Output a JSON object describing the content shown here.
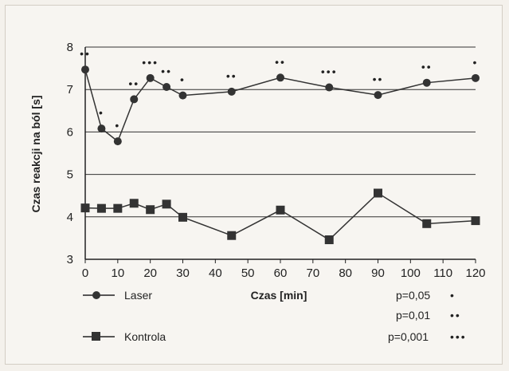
{
  "chart_data": {
    "type": "line",
    "xlabel": "Czas [min]",
    "ylabel": "Czas reakcji na ból [s]",
    "xlim": [
      0,
      120
    ],
    "ylim": [
      3,
      8
    ],
    "x_ticks": [
      0,
      10,
      20,
      30,
      40,
      50,
      60,
      70,
      80,
      90,
      100,
      110,
      120
    ],
    "y_ticks": [
      3,
      4,
      5,
      6,
      7,
      8
    ],
    "grid": "horizontal",
    "series": [
      {
        "name": "Laser",
        "marker": "circle",
        "x": [
          0,
          5,
          10,
          15,
          20,
          25,
          30,
          45,
          60,
          75,
          90,
          105,
          120
        ],
        "y": [
          7.47,
          6.08,
          5.78,
          6.77,
          7.27,
          7.06,
          6.86,
          6.95,
          7.28,
          7.05,
          6.87,
          7.16,
          7.27
        ],
        "significance": [
          "••",
          "•",
          "•",
          "••",
          "•••",
          "••",
          "•",
          "••",
          "••",
          "•••",
          "••",
          "••",
          "•"
        ]
      },
      {
        "name": "Kontrola",
        "marker": "square",
        "x": [
          0,
          5,
          10,
          15,
          20,
          25,
          30,
          45,
          60,
          75,
          90,
          105,
          120
        ],
        "y": [
          4.21,
          4.2,
          4.2,
          4.32,
          4.17,
          4.3,
          3.99,
          3.56,
          4.16,
          3.46,
          4.56,
          3.84,
          3.91
        ]
      }
    ],
    "significance_legend": [
      {
        "label": "p=0,05",
        "marker": "•"
      },
      {
        "label": "p=0,01",
        "marker": "••"
      },
      {
        "label": "p=0,001",
        "marker": "•••"
      }
    ]
  }
}
